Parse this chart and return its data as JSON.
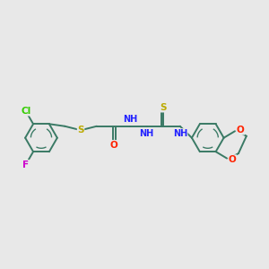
{
  "background_color": "#e8e8e8",
  "bond_color": "#3a7a65",
  "bond_width": 1.4,
  "atom_colors": {
    "Cl": "#33cc00",
    "F": "#cc00cc",
    "S": "#bbaa00",
    "O": "#ff2200",
    "N": "#2222ff",
    "C": "#3a7a65"
  },
  "font_size": 7.5,
  "fig_width": 3.0,
  "fig_height": 3.0,
  "dpi": 100,
  "xlim": [
    0,
    12
  ],
  "ylim": [
    0,
    10
  ]
}
